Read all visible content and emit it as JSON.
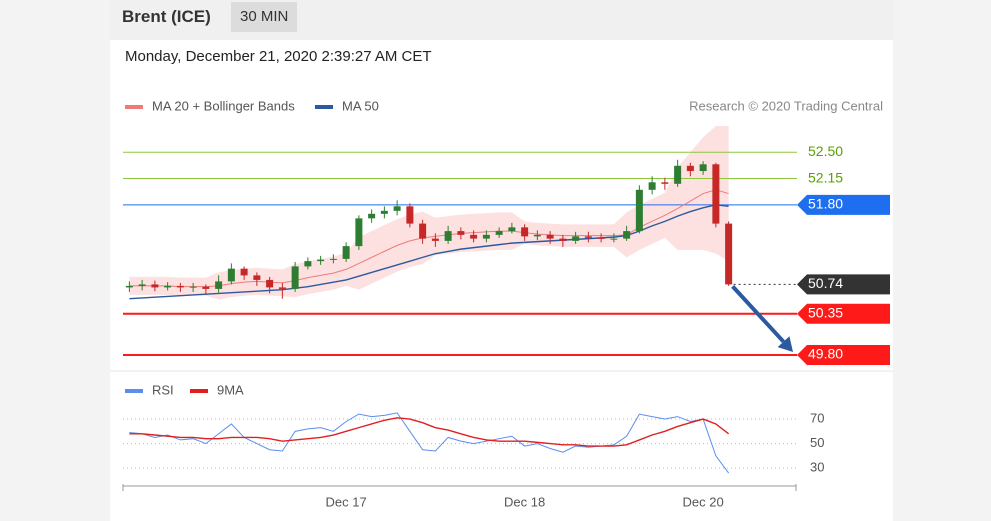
{
  "header": {
    "instrument": "Brent (ICE)",
    "timeframe": "30 MIN",
    "timestamp": "Monday, December 21, 2020 2:39:27 AM CET",
    "credit": "Research © 2020 Trading Central"
  },
  "chart_data": [
    {
      "type": "candlestick",
      "ylim": [
        49.6,
        52.93
      ],
      "up_color": "#2e7d32",
      "down_color": "#c62828",
      "open": [
        50.7,
        50.72,
        50.74,
        50.7,
        50.72,
        50.7,
        50.71,
        50.68,
        50.78,
        50.95,
        50.86,
        50.8,
        50.7,
        50.68,
        50.98,
        51.05,
        51.07,
        51.08,
        51.25,
        51.62,
        51.68,
        51.72,
        51.78,
        51.55,
        51.35,
        51.32,
        51.45,
        51.4,
        51.35,
        51.4,
        51.45,
        51.5,
        51.38,
        51.4,
        51.35,
        51.32,
        51.38,
        51.36,
        51.35,
        51.35,
        51.45,
        52.0,
        52.1,
        52.08,
        52.32,
        52.25,
        52.34,
        51.55
      ],
      "high": [
        50.78,
        50.8,
        50.79,
        50.77,
        50.76,
        50.76,
        50.74,
        50.86,
        51.02,
        50.98,
        50.9,
        50.84,
        50.76,
        51.04,
        51.1,
        51.12,
        51.14,
        51.3,
        51.66,
        51.74,
        51.78,
        51.86,
        51.82,
        51.6,
        51.42,
        51.52,
        51.5,
        51.46,
        51.46,
        51.5,
        51.56,
        51.54,
        51.46,
        51.45,
        51.4,
        51.44,
        51.44,
        51.42,
        51.42,
        51.52,
        52.06,
        52.18,
        52.16,
        52.4,
        52.36,
        52.38,
        52.36,
        51.58
      ],
      "low": [
        50.64,
        50.66,
        50.65,
        50.66,
        50.64,
        50.64,
        50.6,
        50.63,
        50.74,
        50.8,
        50.72,
        50.62,
        50.55,
        50.64,
        50.94,
        51.0,
        51.02,
        51.04,
        51.2,
        51.56,
        51.62,
        51.66,
        51.5,
        51.28,
        51.24,
        51.28,
        51.34,
        51.3,
        51.3,
        51.36,
        51.42,
        51.32,
        51.33,
        51.28,
        51.24,
        51.28,
        51.3,
        51.3,
        51.3,
        51.32,
        51.42,
        51.94,
        52.0,
        52.04,
        52.18,
        52.2,
        51.5,
        50.72
      ],
      "close": [
        50.72,
        50.74,
        50.7,
        50.72,
        50.7,
        50.71,
        50.68,
        50.78,
        50.95,
        50.86,
        50.8,
        50.7,
        50.68,
        50.98,
        51.05,
        51.07,
        51.08,
        51.25,
        51.62,
        51.68,
        51.72,
        51.78,
        51.55,
        51.35,
        51.32,
        51.45,
        51.4,
        51.35,
        51.4,
        51.45,
        51.5,
        51.38,
        51.4,
        51.35,
        51.32,
        51.38,
        51.36,
        51.35,
        51.35,
        51.45,
        52.0,
        52.1,
        52.08,
        52.32,
        52.25,
        52.34,
        51.55,
        50.74
      ],
      "overlays": [
        {
          "name": "MA 20 + Bollinger Bands",
          "color": "#f07a7a",
          "band_color": "#fde0e0",
          "values": [
            50.72,
            50.72,
            50.72,
            50.72,
            50.71,
            50.71,
            50.71,
            50.72,
            50.75,
            50.77,
            50.78,
            50.77,
            50.76,
            50.79,
            50.83,
            50.86,
            50.89,
            50.94,
            51.02,
            51.1,
            51.18,
            51.26,
            51.32,
            51.36,
            51.38,
            51.4,
            51.42,
            51.43,
            51.44,
            51.45,
            51.45,
            51.43,
            51.41,
            51.4,
            51.39,
            51.39,
            51.39,
            51.39,
            51.39,
            51.4,
            51.5,
            51.58,
            51.66,
            51.75,
            51.85,
            51.95,
            52.0,
            51.95
          ],
          "upper": [
            50.84,
            50.84,
            50.84,
            50.84,
            50.83,
            50.83,
            50.83,
            50.9,
            50.93,
            50.95,
            50.96,
            50.95,
            50.94,
            51.01,
            51.05,
            51.08,
            51.11,
            51.16,
            51.37,
            51.45,
            51.53,
            51.61,
            51.67,
            51.71,
            51.63,
            51.65,
            51.67,
            51.68,
            51.69,
            51.7,
            51.7,
            51.58,
            51.56,
            51.55,
            51.54,
            51.54,
            51.54,
            51.54,
            51.54,
            51.7,
            51.8,
            51.88,
            51.96,
            52.3,
            52.5,
            52.7,
            52.85,
            52.85
          ],
          "lower": [
            50.6,
            50.6,
            50.6,
            50.6,
            50.59,
            50.59,
            50.59,
            50.54,
            50.57,
            50.59,
            50.6,
            50.59,
            50.58,
            50.57,
            50.61,
            50.64,
            50.67,
            50.72,
            50.67,
            50.75,
            50.83,
            50.91,
            50.97,
            51.01,
            51.13,
            51.15,
            51.17,
            51.18,
            51.19,
            51.2,
            51.2,
            51.28,
            51.26,
            51.25,
            51.24,
            51.24,
            51.24,
            51.24,
            51.24,
            51.1,
            51.2,
            51.28,
            51.36,
            51.2,
            51.2,
            51.2,
            51.15,
            51.05
          ]
        },
        {
          "name": "MA 50",
          "color": "#2c5aa0",
          "values": [
            50.55,
            50.56,
            50.57,
            50.58,
            50.59,
            50.6,
            50.61,
            50.62,
            50.63,
            50.64,
            50.65,
            50.66,
            50.67,
            50.69,
            50.71,
            50.74,
            50.77,
            50.8,
            50.85,
            50.9,
            50.95,
            51.0,
            51.05,
            51.1,
            51.15,
            51.18,
            51.21,
            51.23,
            51.25,
            51.27,
            51.29,
            51.3,
            51.31,
            51.32,
            51.33,
            51.34,
            51.35,
            51.36,
            51.37,
            51.39,
            51.45,
            51.52,
            51.58,
            51.65,
            51.71,
            51.76,
            51.8,
            51.78
          ]
        }
      ],
      "levels": [
        {
          "value": 52.5,
          "label": "52.50",
          "color": "#8dc63f",
          "text_color": "#5aa000",
          "tag": false,
          "style": "solid"
        },
        {
          "value": 52.15,
          "label": "52.15",
          "color": "#8dc63f",
          "text_color": "#5aa000",
          "tag": false,
          "style": "solid"
        },
        {
          "value": 51.8,
          "label": "51.80",
          "color": "#1e6ef0",
          "text_color": "#ffffff",
          "tag": true,
          "style": "solid"
        },
        {
          "value": 50.74,
          "label": "50.74",
          "color": "#333333",
          "text_color": "#ffffff",
          "tag": true,
          "style": "dotted"
        },
        {
          "value": 50.35,
          "label": "50.35",
          "color": "#ff1a1a",
          "text_color": "#ffffff",
          "tag": true,
          "style": "solid"
        },
        {
          "value": 49.8,
          "label": "49.80",
          "color": "#ff1a1a",
          "text_color": "#ffffff",
          "tag": true,
          "style": "solid"
        }
      ]
    },
    {
      "type": "line",
      "categories": [
        null,
        null,
        null,
        null,
        null,
        null,
        null,
        null,
        null,
        null,
        null,
        null,
        null,
        null,
        null,
        null,
        null,
        "Dec 17",
        null,
        null,
        null,
        null,
        null,
        null,
        null,
        null,
        null,
        null,
        null,
        null,
        null,
        "Dec 18",
        null,
        null,
        null,
        null,
        null,
        null,
        null,
        null,
        null,
        null,
        null,
        null,
        null,
        "Dec 20",
        null,
        null
      ],
      "ylim": [
        22,
        85.5
      ],
      "yticks": [
        30,
        50,
        70
      ],
      "grid": true,
      "series": [
        {
          "name": "RSI",
          "color": "#5b8def",
          "values": [
            59,
            58,
            55,
            57,
            53,
            54,
            50,
            58,
            66,
            55,
            50,
            45,
            44,
            60,
            62,
            63,
            60,
            68,
            74,
            72,
            73,
            75,
            60,
            45,
            44,
            55,
            52,
            50,
            52,
            54,
            56,
            48,
            50,
            46,
            43,
            48,
            47,
            48,
            49,
            56,
            74,
            72,
            70,
            72,
            68,
            70,
            40,
            26
          ]
        },
        {
          "name": "9MA",
          "color": "#e02020",
          "values": [
            58,
            58,
            57,
            56,
            55,
            55,
            54,
            54,
            55,
            55,
            55,
            54,
            52,
            53,
            54,
            55,
            57,
            60,
            63,
            66,
            69,
            71,
            70,
            67,
            63,
            61,
            58,
            55,
            53,
            52,
            52,
            52,
            51,
            50,
            49,
            49,
            48,
            48,
            48,
            49,
            53,
            57,
            60,
            64,
            67,
            70,
            66,
            58
          ]
        }
      ]
    }
  ]
}
